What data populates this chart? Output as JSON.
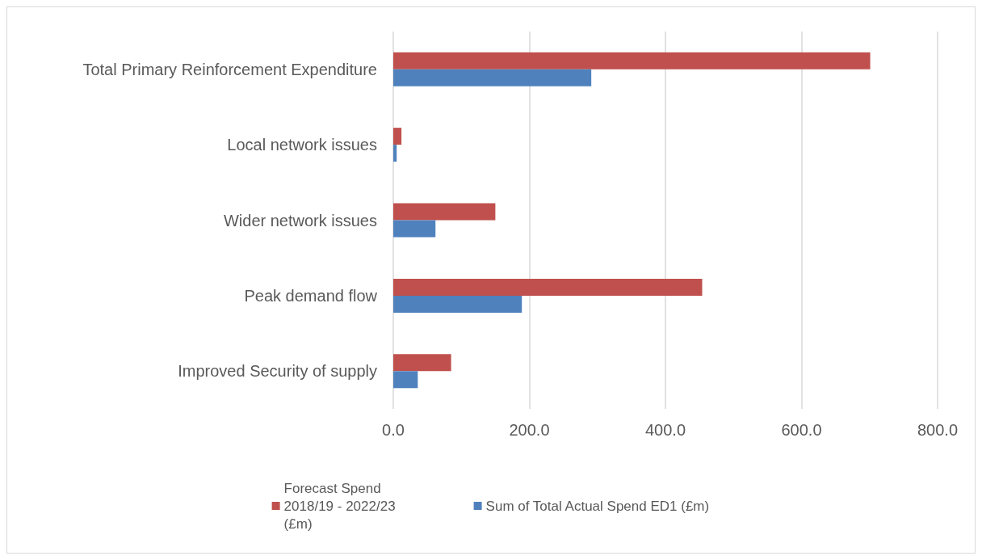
{
  "chart_data": {
    "type": "bar",
    "orientation": "horizontal",
    "categories": [
      "Total Primary Reinforcement Expenditure",
      "Local network issues",
      "Wider network issues",
      "Peak demand flow",
      "Improved Security of supply"
    ],
    "series": [
      {
        "name": "Forecast Spend 2018/19 - 2022/23 (£m)",
        "color": "#c0504d",
        "values": [
          701,
          12,
          150,
          454,
          85
        ]
      },
      {
        "name": "Sum of Total Actual Spend ED1 (£m)",
        "color": "#4f81bd",
        "values": [
          291,
          5,
          62,
          189,
          36
        ]
      }
    ],
    "xlim": [
      0,
      800
    ],
    "xticks": [
      {
        "value": 0,
        "label": "0.0"
      },
      {
        "value": 200,
        "label": "200.0"
      },
      {
        "value": 400,
        "label": "400.0"
      },
      {
        "value": 600,
        "label": "600.0"
      },
      {
        "value": 800,
        "label": "800.0"
      }
    ],
    "grid": "x",
    "legend": "bottom"
  }
}
